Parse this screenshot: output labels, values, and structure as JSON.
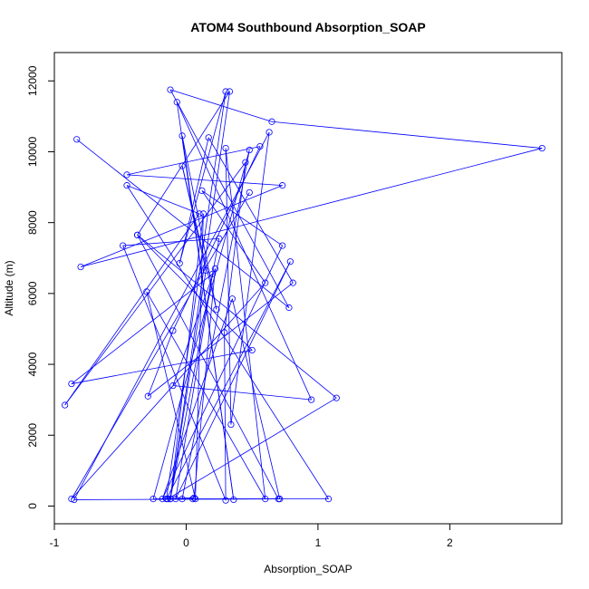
{
  "chart_data": {
    "type": "line",
    "title": "ATOM4 Southbound Absorption_SOAP",
    "xlabel": "Absorption_SOAP",
    "ylabel": "Altitude (m)",
    "xlim": [
      -1.0,
      2.85
    ],
    "ylim": [
      -500,
      12800
    ],
    "xticks": [
      -1,
      0,
      1,
      2
    ],
    "yticks": [
      0,
      2000,
      4000,
      6000,
      8000,
      10000,
      12000
    ],
    "grid": false,
    "legend": "none",
    "colors": {
      "series": "#0000ff"
    },
    "series": [
      {
        "x": [
          -0.83,
          0.78,
          -0.12,
          0.65,
          2.7,
          -0.8,
          0.73,
          -0.45,
          0.56,
          -0.1,
          -0.29,
          0.81,
          0.17,
          -0.05,
          0.3,
          -0.15,
          0.79,
          -0.08,
          0.2,
          -0.87,
          0.5,
          -0.37,
          0.33,
          -0.12,
          0.15,
          -0.03,
          0.23,
          -0.03,
          0.36,
          -0.07,
          0.95,
          -0.1,
          0.22,
          0.06,
          -0.25,
          0.48,
          -0.03,
          1.08,
          -0.45,
          0.1,
          -0.92,
          0.45,
          0.29,
          0.3,
          -0.48,
          0.25,
          -0.12,
          0.13,
          0.07,
          -0.3,
          0.6,
          0.3,
          0.34,
          0.63,
          -0.85,
          0.7,
          -0.37,
          1.14,
          -0.14,
          0.05,
          0.71,
          0.35,
          -0.18,
          0.73,
          0.12,
          0.6,
          -0.87,
          0.48
        ],
        "y": [
          10350,
          5600,
          11750,
          10850,
          10100,
          6750,
          9050,
          9350,
          10150,
          4950,
          3100,
          6300,
          10400,
          6850,
          11700,
          200,
          6900,
          200,
          6550,
          3450,
          4400,
          7650,
          11700,
          200,
          6650,
          9600,
          5550,
          10450,
          180,
          11400,
          3000,
          3400,
          6700,
          230,
          200,
          10050,
          200,
          200,
          9050,
          8250,
          2850,
          9700,
          4900,
          160,
          7350,
          7550,
          200,
          8250,
          200,
          6050,
          200,
          10100,
          2300,
          10550,
          180,
          200,
          7650,
          3050,
          200,
          200,
          200,
          5850,
          200,
          7350,
          8900,
          6300,
          200,
          8850
        ]
      }
    ]
  }
}
